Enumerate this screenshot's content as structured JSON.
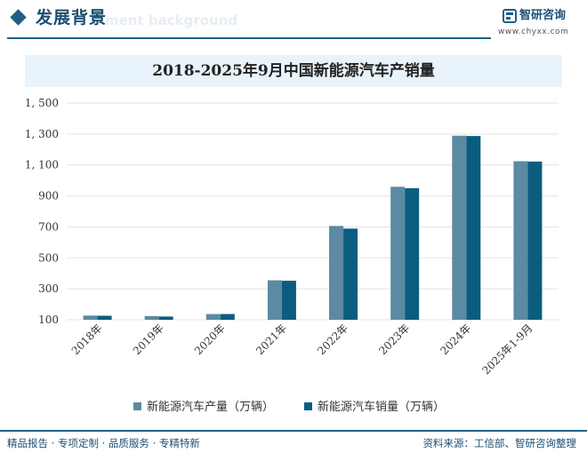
{
  "header": {
    "title": "发展背景",
    "ghost_text": "ment background",
    "logo_name": "智研咨询",
    "logo_url": "www.chyxx.com"
  },
  "colors": {
    "brand": "#1f5f86",
    "production": "#5b8aa2",
    "sales": "#0b5d80",
    "grid": "#e3e3e3",
    "title_band": "#e8f3fb"
  },
  "chart_data": {
    "type": "bar",
    "title": "2018-2025年9月中国新能源汽车产销量",
    "categories": [
      "2018年",
      "2019年",
      "2020年",
      "2021年",
      "2022年",
      "2023年",
      "2024年",
      "2025年1-9月"
    ],
    "series": [
      {
        "name": "新能源汽车产量（万辆）",
        "values": [
          127,
          124,
          137,
          355,
          706,
          959,
          1289,
          1124
        ]
      },
      {
        "name": "新能源汽车销量（万辆）",
        "values": [
          126,
          121,
          137,
          352,
          689,
          950,
          1287,
          1122
        ]
      }
    ],
    "y_ticks": [
      "1, 500",
      "1, 300",
      "1, 100",
      "900",
      "700",
      "500",
      "300",
      "100"
    ],
    "ylim": [
      100,
      1500
    ],
    "grid": true,
    "legend_position": "bottom"
  },
  "footer": {
    "left": "精品报告 · 专项定制 · 品质服务 · 专精特新",
    "right": "资料来源：工信部、智研咨询整理"
  }
}
